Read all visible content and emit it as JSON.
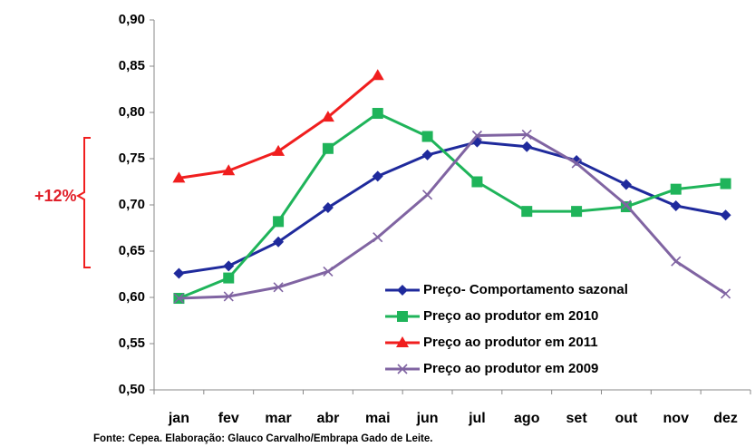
{
  "chart_data": {
    "type": "line",
    "categories": [
      "jan",
      "fev",
      "mar",
      "abr",
      "mai",
      "jun",
      "jul",
      "ago",
      "set",
      "out",
      "nov",
      "dez"
    ],
    "series": [
      {
        "name": "Preço- Comportamento sazonal",
        "color": "#1f2a9c",
        "marker": "diamond",
        "values": [
          0.626,
          0.634,
          0.66,
          0.697,
          0.731,
          0.754,
          0.768,
          0.763,
          0.748,
          0.722,
          0.699,
          0.689
        ]
      },
      {
        "name": "Preço ao produtor  em 2010",
        "color": "#1fb45a",
        "marker": "square",
        "values": [
          0.599,
          0.621,
          0.682,
          0.761,
          0.799,
          0.774,
          0.725,
          0.693,
          0.693,
          0.698,
          0.717,
          0.723
        ]
      },
      {
        "name": "Preço ao produtor  em 2011",
        "color": "#f01e1e",
        "marker": "triangle",
        "values": [
          0.729,
          0.737,
          0.758,
          0.795,
          0.84,
          null,
          null,
          null,
          null,
          null,
          null,
          null
        ]
      },
      {
        "name": "Preço ao produtor  em 2009",
        "color": "#8064a2",
        "marker": "x",
        "values": [
          0.599,
          0.601,
          0.611,
          0.628,
          0.665,
          0.711,
          0.775,
          0.776,
          0.745,
          0.7,
          0.639,
          0.604
        ]
      }
    ],
    "ylim": [
      0.5,
      0.9
    ],
    "yticks": [
      {
        "value": 0.5,
        "label": "0,50"
      },
      {
        "value": 0.55,
        "label": "0,55"
      },
      {
        "value": 0.6,
        "label": "0,60"
      },
      {
        "value": 0.65,
        "label": "0,65"
      },
      {
        "value": 0.7,
        "label": "0,70"
      },
      {
        "value": 0.75,
        "label": "0,75"
      },
      {
        "value": 0.8,
        "label": "0,80"
      },
      {
        "value": 0.85,
        "label": "0,85"
      },
      {
        "value": 0.9,
        "label": "0,90"
      }
    ],
    "grid": false,
    "legend": "lower right",
    "annotation": "+12%",
    "source": "Fonte: Cepea. Elaboração: Glauco Carvalho/Embrapa Gado de Leite."
  }
}
